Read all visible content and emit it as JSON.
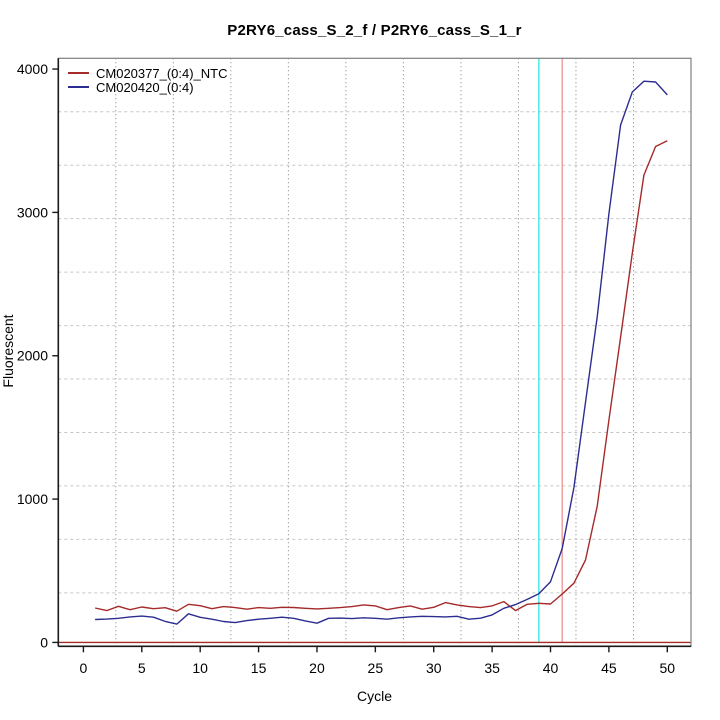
{
  "figure": {
    "background": "#FFFFFF"
  },
  "chart_data": {
    "type": "line",
    "title": "P2RY6_cass_S_2_f / P2RY6_cass_S_1_r",
    "xlabel": "Cycle",
    "ylabel": "Fluorescent",
    "xlim": [
      -2.15,
      52.03
    ],
    "ylim": [
      -27,
      4075
    ],
    "xticks": [
      0,
      5,
      10,
      15,
      20,
      25,
      30,
      35,
      40,
      45,
      50
    ],
    "yticks": [
      0,
      1000,
      2000,
      3000,
      4000
    ],
    "grid": {
      "nx": 11,
      "ny": 11,
      "style": "dotted",
      "v_color": "#7F7F7F",
      "h_color": "#C6C6C6"
    },
    "x": [
      1,
      2,
      3,
      4,
      5,
      6,
      7,
      8,
      9,
      10,
      11,
      12,
      13,
      14,
      15,
      16,
      17,
      18,
      19,
      20,
      21,
      22,
      23,
      24,
      25,
      26,
      27,
      28,
      29,
      30,
      31,
      32,
      33,
      34,
      35,
      36,
      37,
      38,
      39,
      40,
      41,
      42,
      43,
      44,
      45,
      46,
      47,
      48,
      49,
      50
    ],
    "series": [
      {
        "name": "CM020377_(0:4)_NTC",
        "color": "#A52A2A",
        "values": [
          240,
          222,
          252,
          228,
          247,
          235,
          242,
          218,
          266,
          256,
          235,
          250,
          243,
          232,
          243,
          238,
          245,
          244,
          238,
          234,
          238,
          243,
          250,
          262,
          255,
          228,
          243,
          255,
          232,
          245,
          278,
          262,
          250,
          243,
          255,
          285,
          222,
          266,
          273,
          268,
          338,
          413,
          575,
          950,
          1550,
          2130,
          2715,
          3260,
          3460,
          3500
        ]
      },
      {
        "name": "CM020420_(0:4)",
        "color": "#2D2D91",
        "values": [
          160,
          163,
          168,
          178,
          184,
          176,
          147,
          128,
          200,
          175,
          162,
          146,
          138,
          152,
          162,
          168,
          176,
          168,
          150,
          134,
          168,
          170,
          166,
          172,
          168,
          162,
          172,
          178,
          182,
          180,
          178,
          182,
          162,
          169,
          192,
          238,
          264,
          300,
          340,
          424,
          655,
          1080,
          1675,
          2270,
          2990,
          3610,
          3840,
          3915,
          3910,
          3820
        ]
      }
    ],
    "vlines": [
      {
        "x": 39,
        "color": "#3FE6E6",
        "name": "threshold-cycle-line-cyan"
      },
      {
        "x": 41,
        "color": "#EF9A9A",
        "name": "threshold-cycle-line-red"
      }
    ],
    "hlines": [
      {
        "y": 0,
        "color": "#A52A2A",
        "name": "zero-baseline-line"
      }
    ],
    "legend_position": "top-left",
    "axis": {
      "box_color": "#808080",
      "axis_color": "#1A1A1A",
      "tick_label_color": "#000000"
    }
  }
}
